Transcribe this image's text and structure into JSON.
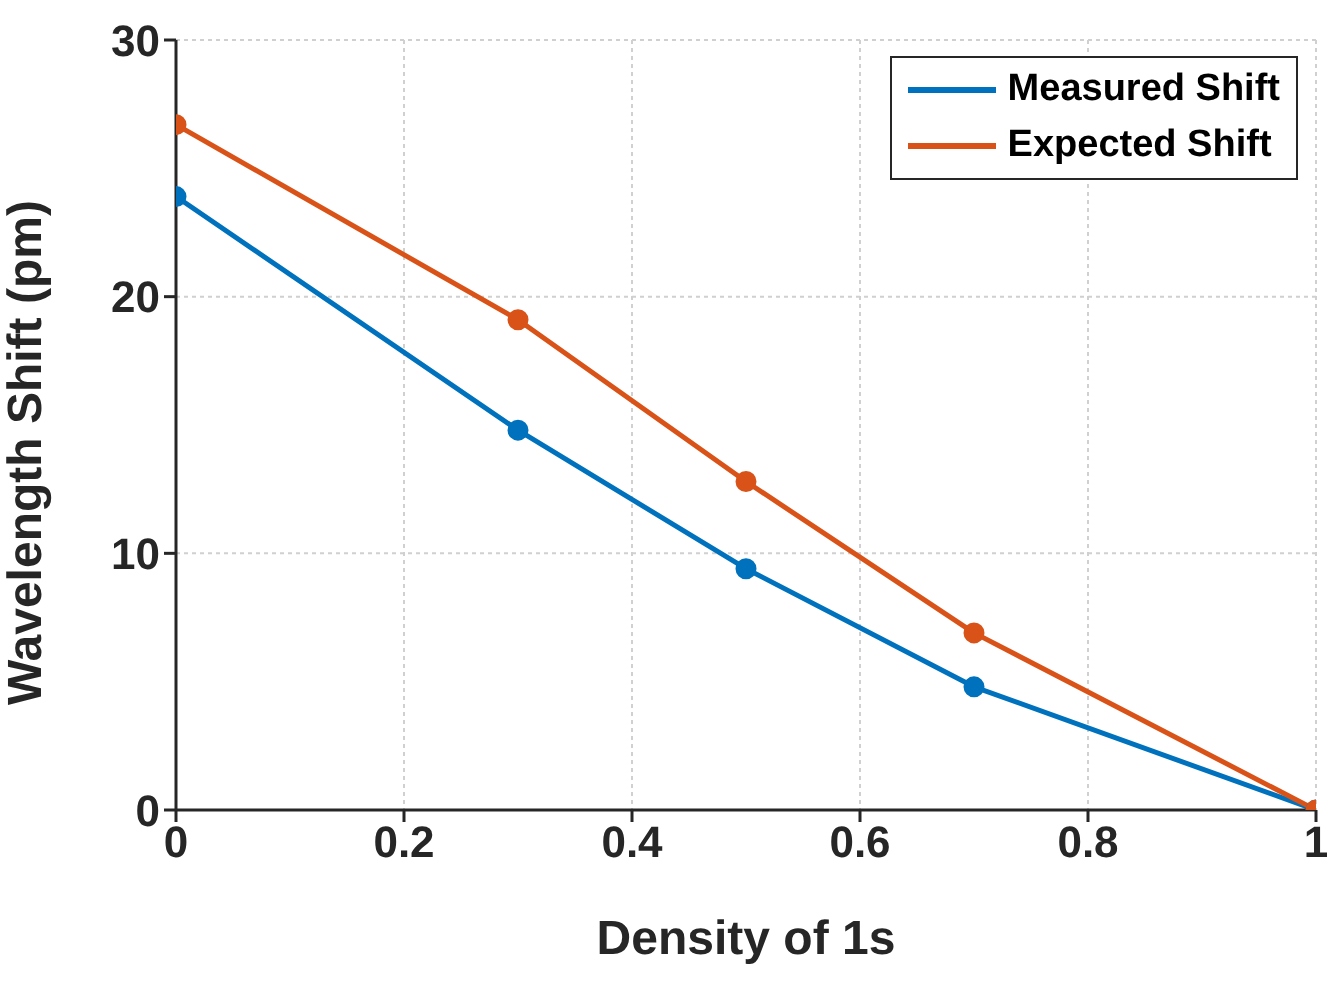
{
  "chart_data": {
    "type": "line",
    "xlabel": "Density of 1s",
    "ylabel": "Wavelength Shift (pm)",
    "x": [
      0,
      0.3,
      0.5,
      0.7,
      1
    ],
    "series": [
      {
        "name": "Measured Shift",
        "color": "#0072bd",
        "values": [
          23.9,
          14.8,
          9.4,
          4.8,
          0
        ]
      },
      {
        "name": "Expected Shift",
        "color": "#d95319",
        "values": [
          26.7,
          19.1,
          12.8,
          6.9,
          0
        ]
      }
    ],
    "xlim": [
      0,
      1
    ],
    "xticks": [
      0,
      0.2,
      0.4,
      0.6,
      0.8,
      1
    ],
    "ylim": [
      0,
      30
    ],
    "yticks": [
      0,
      10,
      20,
      30
    ],
    "grid": true,
    "legend": "top right",
    "marker": "circle",
    "line_style": "solid"
  }
}
